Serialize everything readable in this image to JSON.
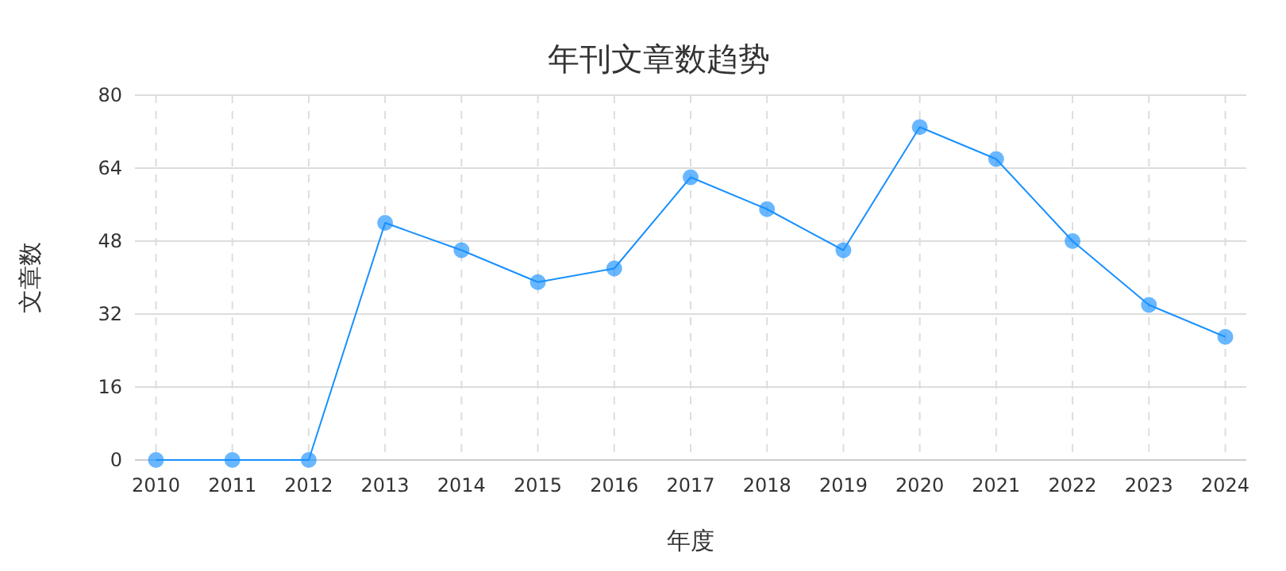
{
  "chart_data": {
    "type": "line",
    "title": "年刊文章数趋势",
    "xlabel": "年度",
    "ylabel": "文章数",
    "categories": [
      "2010",
      "2011",
      "2012",
      "2013",
      "2014",
      "2015",
      "2016",
      "2017",
      "2018",
      "2019",
      "2020",
      "2021",
      "2022",
      "2023",
      "2024"
    ],
    "series": [
      {
        "color": "#1890ff",
        "values": [
          0,
          0,
          0,
          52,
          46,
          39,
          42,
          62,
          55,
          46,
          73,
          66,
          48,
          34,
          27
        ]
      }
    ],
    "ylim": [
      0,
      80
    ],
    "yticks": [
      0,
      16,
      32,
      48,
      64,
      80
    ],
    "grid": true,
    "marker": "circle",
    "line_style": "solid"
  }
}
